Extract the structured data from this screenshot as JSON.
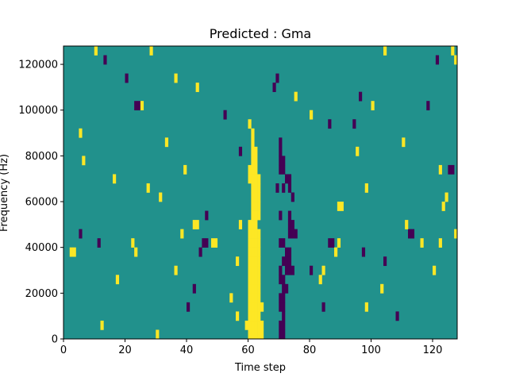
{
  "chart_data": {
    "type": "heatmap",
    "title": "Predicted : Gma",
    "xlabel": "Time step",
    "ylabel": "Frequency (Hz)",
    "xlim": [
      0,
      128
    ],
    "ylim": [
      0,
      128000
    ],
    "x_ticks": [
      0,
      20,
      40,
      60,
      80,
      100,
      120
    ],
    "x_tick_labels": [
      "0",
      "20",
      "40",
      "60",
      "80",
      "100",
      "120"
    ],
    "y_ticks": [
      0,
      20000,
      40000,
      60000,
      80000,
      100000,
      120000
    ],
    "y_tick_labels": [
      "0",
      "20000",
      "40000",
      "60000",
      "80000",
      "100000",
      "120000"
    ],
    "grid": false,
    "legend": "none",
    "colormap": "viridis",
    "levels": {
      "low": -1,
      "background": 0,
      "high": 1
    },
    "colors": {
      "low": "#440154",
      "background": "#21918c",
      "high": "#fde725"
    },
    "cell_width_steps": 1,
    "cell_height_hz": 4000,
    "cells": [
      {
        "x": 60,
        "y": 0,
        "v": 1
      },
      {
        "x": 61,
        "y": 0,
        "v": 1
      },
      {
        "x": 62,
        "y": 0,
        "v": 1
      },
      {
        "x": 63,
        "y": 0,
        "v": 1
      },
      {
        "x": 64,
        "y": 0,
        "v": 1
      },
      {
        "x": 59,
        "y": 4000,
        "v": 1
      },
      {
        "x": 60,
        "y": 4000,
        "v": 1
      },
      {
        "x": 61,
        "y": 4000,
        "v": 1
      },
      {
        "x": 62,
        "y": 4000,
        "v": 1
      },
      {
        "x": 63,
        "y": 4000,
        "v": 1
      },
      {
        "x": 64,
        "y": 4000,
        "v": 1
      },
      {
        "x": 60,
        "y": 8000,
        "v": 1
      },
      {
        "x": 61,
        "y": 8000,
        "v": 1
      },
      {
        "x": 62,
        "y": 8000,
        "v": 1
      },
      {
        "x": 63,
        "y": 8000,
        "v": 1
      },
      {
        "x": 60,
        "y": 12000,
        "v": 1
      },
      {
        "x": 61,
        "y": 12000,
        "v": 1
      },
      {
        "x": 62,
        "y": 12000,
        "v": 1
      },
      {
        "x": 63,
        "y": 12000,
        "v": 1
      },
      {
        "x": 64,
        "y": 12000,
        "v": 1
      },
      {
        "x": 60,
        "y": 16000,
        "v": 1
      },
      {
        "x": 61,
        "y": 16000,
        "v": 1
      },
      {
        "x": 62,
        "y": 16000,
        "v": 1
      },
      {
        "x": 63,
        "y": 16000,
        "v": 1
      },
      {
        "x": 60,
        "y": 20000,
        "v": 1
      },
      {
        "x": 61,
        "y": 20000,
        "v": 1
      },
      {
        "x": 62,
        "y": 20000,
        "v": 1
      },
      {
        "x": 63,
        "y": 20000,
        "v": 1
      },
      {
        "x": 60,
        "y": 24000,
        "v": 1
      },
      {
        "x": 61,
        "y": 24000,
        "v": 1
      },
      {
        "x": 62,
        "y": 24000,
        "v": 1
      },
      {
        "x": 63,
        "y": 24000,
        "v": 1
      },
      {
        "x": 60,
        "y": 28000,
        "v": 1
      },
      {
        "x": 61,
        "y": 28000,
        "v": 1
      },
      {
        "x": 62,
        "y": 28000,
        "v": 1
      },
      {
        "x": 63,
        "y": 28000,
        "v": 1
      },
      {
        "x": 60,
        "y": 32000,
        "v": 1
      },
      {
        "x": 61,
        "y": 32000,
        "v": 1
      },
      {
        "x": 62,
        "y": 32000,
        "v": 1
      },
      {
        "x": 63,
        "y": 32000,
        "v": 1
      },
      {
        "x": 60,
        "y": 36000,
        "v": 1
      },
      {
        "x": 61,
        "y": 36000,
        "v": 1
      },
      {
        "x": 62,
        "y": 36000,
        "v": 1
      },
      {
        "x": 63,
        "y": 36000,
        "v": 1
      },
      {
        "x": 60,
        "y": 40000,
        "v": 1
      },
      {
        "x": 61,
        "y": 40000,
        "v": 1
      },
      {
        "x": 62,
        "y": 40000,
        "v": 1
      },
      {
        "x": 63,
        "y": 40000,
        "v": 1
      },
      {
        "x": 60,
        "y": 44000,
        "v": 1
      },
      {
        "x": 61,
        "y": 44000,
        "v": 1
      },
      {
        "x": 62,
        "y": 44000,
        "v": 1
      },
      {
        "x": 63,
        "y": 44000,
        "v": 1
      },
      {
        "x": 60,
        "y": 48000,
        "v": 1
      },
      {
        "x": 61,
        "y": 48000,
        "v": 1
      },
      {
        "x": 62,
        "y": 48000,
        "v": 1
      },
      {
        "x": 61,
        "y": 52000,
        "v": 1
      },
      {
        "x": 62,
        "y": 52000,
        "v": 1
      },
      {
        "x": 63,
        "y": 52000,
        "v": 1
      },
      {
        "x": 61,
        "y": 56000,
        "v": 1
      },
      {
        "x": 62,
        "y": 56000,
        "v": 1
      },
      {
        "x": 63,
        "y": 56000,
        "v": 1
      },
      {
        "x": 61,
        "y": 60000,
        "v": 1
      },
      {
        "x": 62,
        "y": 60000,
        "v": 1
      },
      {
        "x": 63,
        "y": 60000,
        "v": 1
      },
      {
        "x": 61,
        "y": 64000,
        "v": 1
      },
      {
        "x": 62,
        "y": 64000,
        "v": 1
      },
      {
        "x": 63,
        "y": 64000,
        "v": 1
      },
      {
        "x": 60,
        "y": 68000,
        "v": 1
      },
      {
        "x": 61,
        "y": 68000,
        "v": 1
      },
      {
        "x": 62,
        "y": 68000,
        "v": 1
      },
      {
        "x": 63,
        "y": 68000,
        "v": 1
      },
      {
        "x": 60,
        "y": 72000,
        "v": 1
      },
      {
        "x": 61,
        "y": 72000,
        "v": 1
      },
      {
        "x": 62,
        "y": 72000,
        "v": 1
      },
      {
        "x": 61,
        "y": 76000,
        "v": 1
      },
      {
        "x": 62,
        "y": 76000,
        "v": 1
      },
      {
        "x": 61,
        "y": 80000,
        "v": 1
      },
      {
        "x": 62,
        "y": 80000,
        "v": 1
      },
      {
        "x": 61,
        "y": 84000,
        "v": 1
      },
      {
        "x": 61,
        "y": 88000,
        "v": 1
      },
      {
        "x": 60,
        "y": 92000,
        "v": 1
      },
      {
        "x": 70,
        "y": 0,
        "v": -1
      },
      {
        "x": 71,
        "y": 0,
        "v": -1
      },
      {
        "x": 70,
        "y": 4000,
        "v": -1
      },
      {
        "x": 71,
        "y": 4000,
        "v": -1
      },
      {
        "x": 71,
        "y": 8000,
        "v": -1
      },
      {
        "x": 70,
        "y": 12000,
        "v": -1
      },
      {
        "x": 71,
        "y": 12000,
        "v": -1
      },
      {
        "x": 70,
        "y": 16000,
        "v": -1
      },
      {
        "x": 71,
        "y": 16000,
        "v": -1
      },
      {
        "x": 71,
        "y": 20000,
        "v": -1
      },
      {
        "x": 72,
        "y": 20000,
        "v": -1
      },
      {
        "x": 70,
        "y": 24000,
        "v": -1
      },
      {
        "x": 71,
        "y": 24000,
        "v": -1
      },
      {
        "x": 70,
        "y": 28000,
        "v": -1
      },
      {
        "x": 72,
        "y": 28000,
        "v": -1
      },
      {
        "x": 73,
        "y": 28000,
        "v": -1
      },
      {
        "x": 74,
        "y": 28000,
        "v": -1
      },
      {
        "x": 71,
        "y": 32000,
        "v": -1
      },
      {
        "x": 72,
        "y": 32000,
        "v": -1
      },
      {
        "x": 73,
        "y": 32000,
        "v": -1
      },
      {
        "x": 72,
        "y": 36000,
        "v": -1
      },
      {
        "x": 73,
        "y": 36000,
        "v": -1
      },
      {
        "x": 70,
        "y": 40000,
        "v": -1
      },
      {
        "x": 71,
        "y": 40000,
        "v": -1
      },
      {
        "x": 73,
        "y": 44000,
        "v": -1
      },
      {
        "x": 74,
        "y": 44000,
        "v": -1
      },
      {
        "x": 75,
        "y": 44000,
        "v": -1
      },
      {
        "x": 73,
        "y": 48000,
        "v": -1
      },
      {
        "x": 74,
        "y": 48000,
        "v": -1
      },
      {
        "x": 70,
        "y": 52000,
        "v": -1
      },
      {
        "x": 73,
        "y": 52000,
        "v": -1
      },
      {
        "x": 74,
        "y": 60000,
        "v": -1
      },
      {
        "x": 69,
        "y": 64000,
        "v": -1
      },
      {
        "x": 71,
        "y": 64000,
        "v": -1
      },
      {
        "x": 73,
        "y": 64000,
        "v": -1
      },
      {
        "x": 72,
        "y": 68000,
        "v": -1
      },
      {
        "x": 73,
        "y": 68000,
        "v": -1
      },
      {
        "x": 70,
        "y": 72000,
        "v": -1
      },
      {
        "x": 71,
        "y": 72000,
        "v": -1
      },
      {
        "x": 70,
        "y": 76000,
        "v": -1
      },
      {
        "x": 71,
        "y": 76000,
        "v": -1
      },
      {
        "x": 70,
        "y": 80000,
        "v": -1
      },
      {
        "x": 70,
        "y": 84000,
        "v": -1
      },
      {
        "x": 44,
        "y": 36000,
        "v": -1
      },
      {
        "x": 45,
        "y": 40000,
        "v": -1
      },
      {
        "x": 46,
        "y": 40000,
        "v": -1
      },
      {
        "x": 46,
        "y": 52000,
        "v": -1
      },
      {
        "x": 23,
        "y": 100000,
        "v": -1
      },
      {
        "x": 24,
        "y": 100000,
        "v": -1
      },
      {
        "x": 40,
        "y": 12000,
        "v": -1
      },
      {
        "x": 42,
        "y": 20000,
        "v": -1
      },
      {
        "x": 86,
        "y": 40000,
        "v": -1
      },
      {
        "x": 87,
        "y": 40000,
        "v": -1
      },
      {
        "x": 112,
        "y": 44000,
        "v": -1
      },
      {
        "x": 113,
        "y": 44000,
        "v": -1
      },
      {
        "x": 125,
        "y": 72000,
        "v": -1
      },
      {
        "x": 126,
        "y": 72000,
        "v": -1
      },
      {
        "x": 96,
        "y": 104000,
        "v": -1
      },
      {
        "x": 97,
        "y": 36000,
        "v": -1
      },
      {
        "x": 86,
        "y": 92000,
        "v": -1
      },
      {
        "x": 94,
        "y": 92000,
        "v": -1
      },
      {
        "x": 68,
        "y": 108000,
        "v": -1
      },
      {
        "x": 69,
        "y": 112000,
        "v": -1
      },
      {
        "x": 13,
        "y": 120000,
        "v": -1
      },
      {
        "x": 20,
        "y": 112000,
        "v": -1
      },
      {
        "x": 52,
        "y": 96000,
        "v": -1
      },
      {
        "x": 57,
        "y": 80000,
        "v": -1
      },
      {
        "x": 5,
        "y": 44000,
        "v": -1
      },
      {
        "x": 11,
        "y": 40000,
        "v": -1
      },
      {
        "x": 80,
        "y": 28000,
        "v": -1
      },
      {
        "x": 84,
        "y": 12000,
        "v": -1
      },
      {
        "x": 104,
        "y": 32000,
        "v": -1
      },
      {
        "x": 108,
        "y": 8000,
        "v": -1
      },
      {
        "x": 118,
        "y": 100000,
        "v": -1
      },
      {
        "x": 121,
        "y": 120000,
        "v": -1
      },
      {
        "x": 2,
        "y": 36000,
        "v": 1
      },
      {
        "x": 3,
        "y": 36000,
        "v": 1
      },
      {
        "x": 22,
        "y": 40000,
        "v": 1
      },
      {
        "x": 23,
        "y": 36000,
        "v": 1
      },
      {
        "x": 27,
        "y": 64000,
        "v": 1
      },
      {
        "x": 31,
        "y": 60000,
        "v": 1
      },
      {
        "x": 36,
        "y": 28000,
        "v": 1
      },
      {
        "x": 38,
        "y": 44000,
        "v": 1
      },
      {
        "x": 42,
        "y": 48000,
        "v": 1
      },
      {
        "x": 43,
        "y": 48000,
        "v": 1
      },
      {
        "x": 48,
        "y": 40000,
        "v": 1
      },
      {
        "x": 49,
        "y": 40000,
        "v": 1
      },
      {
        "x": 56,
        "y": 32000,
        "v": 1
      },
      {
        "x": 57,
        "y": 48000,
        "v": 1
      },
      {
        "x": 83,
        "y": 24000,
        "v": 1
      },
      {
        "x": 84,
        "y": 28000,
        "v": 1
      },
      {
        "x": 88,
        "y": 36000,
        "v": 1
      },
      {
        "x": 89,
        "y": 40000,
        "v": 1
      },
      {
        "x": 89,
        "y": 56000,
        "v": 1
      },
      {
        "x": 90,
        "y": 56000,
        "v": 1
      },
      {
        "x": 98,
        "y": 64000,
        "v": 1
      },
      {
        "x": 103,
        "y": 20000,
        "v": 1
      },
      {
        "x": 111,
        "y": 48000,
        "v": 1
      },
      {
        "x": 116,
        "y": 40000,
        "v": 1
      },
      {
        "x": 120,
        "y": 28000,
        "v": 1
      },
      {
        "x": 122,
        "y": 40000,
        "v": 1
      },
      {
        "x": 123,
        "y": 56000,
        "v": 1
      },
      {
        "x": 124,
        "y": 60000,
        "v": 1
      },
      {
        "x": 122,
        "y": 72000,
        "v": 1
      },
      {
        "x": 126,
        "y": 124000,
        "v": 1
      },
      {
        "x": 127,
        "y": 120000,
        "v": 1
      },
      {
        "x": 127,
        "y": 44000,
        "v": 1
      },
      {
        "x": 10,
        "y": 124000,
        "v": 1
      },
      {
        "x": 28,
        "y": 124000,
        "v": 1
      },
      {
        "x": 36,
        "y": 112000,
        "v": 1
      },
      {
        "x": 43,
        "y": 108000,
        "v": 1
      },
      {
        "x": 5,
        "y": 88000,
        "v": 1
      },
      {
        "x": 6,
        "y": 76000,
        "v": 1
      },
      {
        "x": 16,
        "y": 68000,
        "v": 1
      },
      {
        "x": 25,
        "y": 100000,
        "v": 1
      },
      {
        "x": 33,
        "y": 84000,
        "v": 1
      },
      {
        "x": 39,
        "y": 72000,
        "v": 1
      },
      {
        "x": 75,
        "y": 104000,
        "v": 1
      },
      {
        "x": 80,
        "y": 96000,
        "v": 1
      },
      {
        "x": 95,
        "y": 80000,
        "v": 1
      },
      {
        "x": 100,
        "y": 100000,
        "v": 1
      },
      {
        "x": 104,
        "y": 124000,
        "v": 1
      },
      {
        "x": 110,
        "y": 84000,
        "v": 1
      },
      {
        "x": 56,
        "y": 8000,
        "v": 1
      },
      {
        "x": 54,
        "y": 16000,
        "v": 1
      },
      {
        "x": 17,
        "y": 24000,
        "v": 1
      },
      {
        "x": 12,
        "y": 4000,
        "v": 1
      },
      {
        "x": 30,
        "y": 0,
        "v": 1
      },
      {
        "x": 98,
        "y": 12000,
        "v": 1
      }
    ]
  }
}
